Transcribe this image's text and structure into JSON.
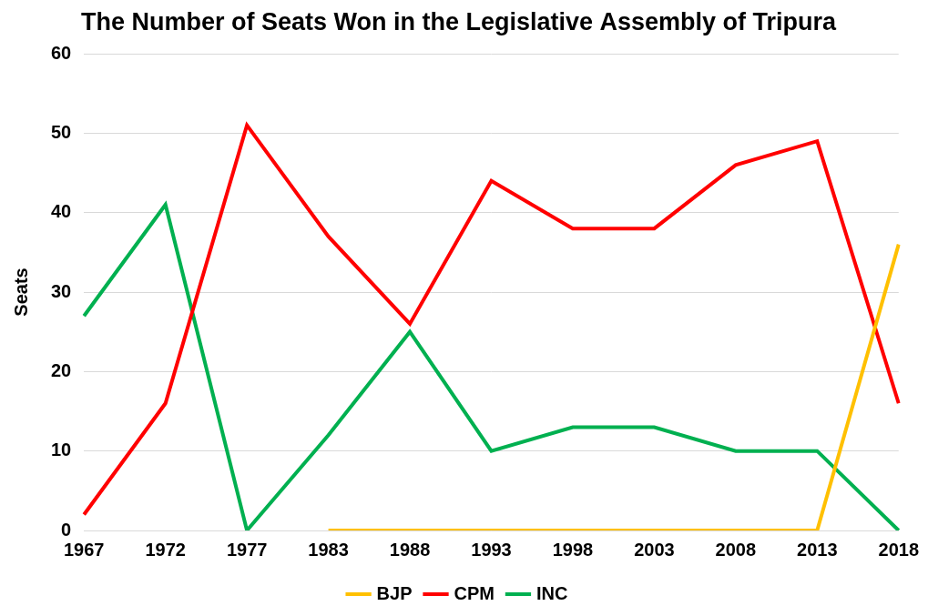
{
  "chart_data": {
    "type": "line",
    "title": "The Number of Seats Won in the Legislative Assembly of Tripura",
    "y_label": "Seats",
    "categories": [
      "1967",
      "1972",
      "1977",
      "1983",
      "1988",
      "1993",
      "1998",
      "2003",
      "2008",
      "2013",
      "2018"
    ],
    "series": [
      {
        "name": "BJP",
        "color": "#ffc000",
        "values": [
          null,
          null,
          null,
          0,
          0,
          0,
          0,
          0,
          0,
          0,
          36
        ]
      },
      {
        "name": "CPM",
        "color": "#ff0000",
        "values": [
          2,
          16,
          51,
          37,
          26,
          44,
          38,
          38,
          46,
          49,
          16
        ]
      },
      {
        "name": "INC",
        "color": "#00b050",
        "values": [
          27,
          41,
          0,
          12,
          25,
          10,
          13,
          13,
          10,
          10,
          0
        ]
      }
    ],
    "ylim": [
      0,
      60
    ],
    "yticks": [
      0,
      10,
      20,
      30,
      40,
      50,
      60
    ],
    "grid": true,
    "legend": "bottom"
  }
}
